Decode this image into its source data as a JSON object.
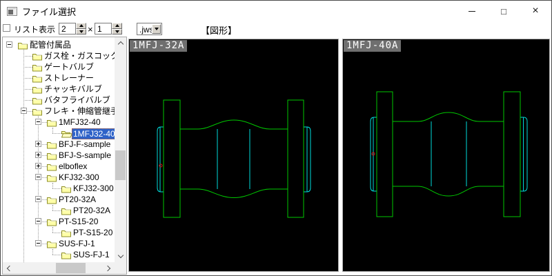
{
  "window": {
    "title": "ファイル選択"
  },
  "icons": {
    "maximize_glyph": "□",
    "close_glyph": "×"
  },
  "toolbar": {
    "list_toggle_label": "リスト表示",
    "grid_cols_value": "2",
    "times_label": "×",
    "grid_rows_value": "1",
    "file_ext_value": ".jws",
    "mode_label": "【図形】"
  },
  "tree": {
    "items": [
      {
        "label": "配管付属品",
        "level": 0,
        "expand": "minus",
        "selected": false
      },
      {
        "label": "ガス栓・ガスコック",
        "level": 1,
        "expand": null,
        "selected": false
      },
      {
        "label": "ゲートバルブ",
        "level": 1,
        "expand": null,
        "selected": false
      },
      {
        "label": "ストレーナー",
        "level": 1,
        "expand": null,
        "selected": false
      },
      {
        "label": "チャッキバルブ",
        "level": 1,
        "expand": null,
        "selected": false
      },
      {
        "label": "バタフライバルブ",
        "level": 1,
        "expand": null,
        "selected": false
      },
      {
        "label": "フレキ・伸縮管継手",
        "level": 1,
        "expand": "minus",
        "selected": false
      },
      {
        "label": "1MFJ32-40",
        "level": 2,
        "expand": "minus",
        "selected": false
      },
      {
        "label": "1MFJ32-40",
        "level": 3,
        "expand": null,
        "selected": true,
        "open": true
      },
      {
        "label": "BFJ-F-sample",
        "level": 2,
        "expand": "plus",
        "selected": false
      },
      {
        "label": "BFJ-S-sample",
        "level": 2,
        "expand": "plus",
        "selected": false
      },
      {
        "label": "elboflex",
        "level": 2,
        "expand": "plus",
        "selected": false
      },
      {
        "label": "KFJ32-300",
        "level": 2,
        "expand": "minus",
        "selected": false
      },
      {
        "label": "KFJ32-300",
        "level": 3,
        "expand": null,
        "selected": false
      },
      {
        "label": "PT20-32A",
        "level": 2,
        "expand": "minus",
        "selected": false
      },
      {
        "label": "PT20-32A",
        "level": 3,
        "expand": null,
        "selected": false
      },
      {
        "label": "PT-S15-20",
        "level": 2,
        "expand": "minus",
        "selected": false
      },
      {
        "label": "PT-S15-20",
        "level": 3,
        "expand": null,
        "selected": false
      },
      {
        "label": "SUS-FJ-1",
        "level": 2,
        "expand": "minus",
        "selected": false
      },
      {
        "label": "SUS-FJ-1",
        "level": 3,
        "expand": null,
        "selected": false
      },
      {
        "label": "",
        "level": 1,
        "expand": null,
        "selected": false,
        "partial": true
      }
    ]
  },
  "previews": [
    {
      "label": "1MFJ-32A"
    },
    {
      "label": "1MFJ-40A"
    }
  ],
  "colors": {
    "selection": "#2e62c8",
    "focus_ring": "#cc6a33",
    "cad_green": "#00c800",
    "cad_cyan": "#00dcdc",
    "cad_red": "#e01010",
    "preview_label_bg": "#6f6f6f"
  }
}
